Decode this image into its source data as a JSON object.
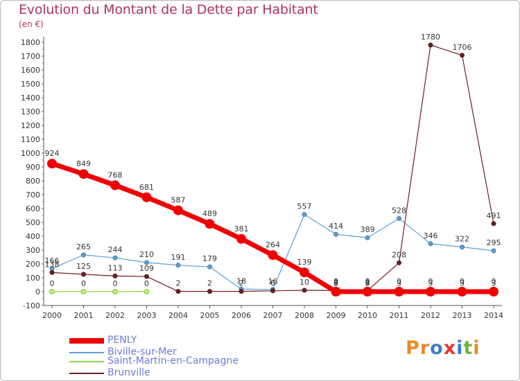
{
  "title": "Evolution du Montant de la Dette par Habitant",
  "unit": "(en €)",
  "logo": {
    "text": "Proxiti",
    "letter_colors": [
      "#e98b2a",
      "#e98b2a",
      "#3e7fc4",
      "#e2352e",
      "#3e7fc4",
      "#6fb23b",
      "#e98b2a"
    ]
  },
  "chart_data": {
    "type": "line",
    "title": "Evolution du Montant de la Dette par Habitant",
    "ylabel": "(en €)",
    "xlabel": "",
    "x": [
      "2000",
      "2001",
      "2002",
      "2003",
      "2004",
      "2005",
      "2006",
      "2007",
      "2008",
      "2009",
      "2010",
      "2011",
      "2012",
      "2013",
      "2014"
    ],
    "ylim": [
      -100,
      1800
    ],
    "yticks": [
      -100,
      0,
      100,
      200,
      300,
      400,
      500,
      600,
      700,
      800,
      900,
      1000,
      1100,
      1200,
      1300,
      1400,
      1500,
      1600,
      1700,
      1800
    ],
    "grid": false,
    "legend_position": "bottom-left",
    "series": [
      {
        "name": "PENLY",
        "color": "#f00000",
        "values": [
          924,
          849,
          768,
          681,
          587,
          489,
          381,
          264,
          139,
          0,
          0,
          0,
          0,
          0,
          0
        ],
        "labels": [
          "924",
          "849",
          "768",
          "681",
          "587",
          "489",
          "381",
          "264",
          "139",
          "0",
          "0",
          "0",
          "0",
          "0",
          "0"
        ]
      },
      {
        "name": "Biville-sur-Mer",
        "color": "#5e9fd0",
        "values": [
          166,
          265,
          244,
          210,
          191,
          179,
          18,
          16,
          557,
          414,
          389,
          528,
          346,
          322,
          295
        ],
        "labels": [
          "166",
          "265",
          "244",
          "210",
          "191",
          "179",
          "18",
          "16",
          "557",
          "414",
          "389",
          "528",
          "346",
          "322",
          "295"
        ]
      },
      {
        "name": "Saint-Martin-en-Campagne",
        "color": "#8cd43c",
        "values": [
          0,
          0,
          0,
          0,
          null,
          null,
          null,
          null,
          null,
          3,
          3,
          3,
          3,
          3,
          3
        ],
        "labels": [
          "0",
          "0",
          "0",
          "0",
          "",
          "",
          "",
          "",
          "",
          "3",
          "3",
          "3",
          "3",
          "3",
          "3"
        ]
      },
      {
        "name": "Brunville",
        "color": "#6b1f22",
        "values": [
          138,
          125,
          113,
          109,
          2,
          2,
          2,
          6,
          10,
          8,
          8,
          208,
          1780,
          1706,
          491
        ],
        "labels": [
          "138",
          "125",
          "113",
          "109",
          "2",
          "2",
          "2",
          "6",
          "10",
          "8",
          "8",
          "208",
          "1780",
          "1706",
          "491"
        ]
      }
    ]
  }
}
